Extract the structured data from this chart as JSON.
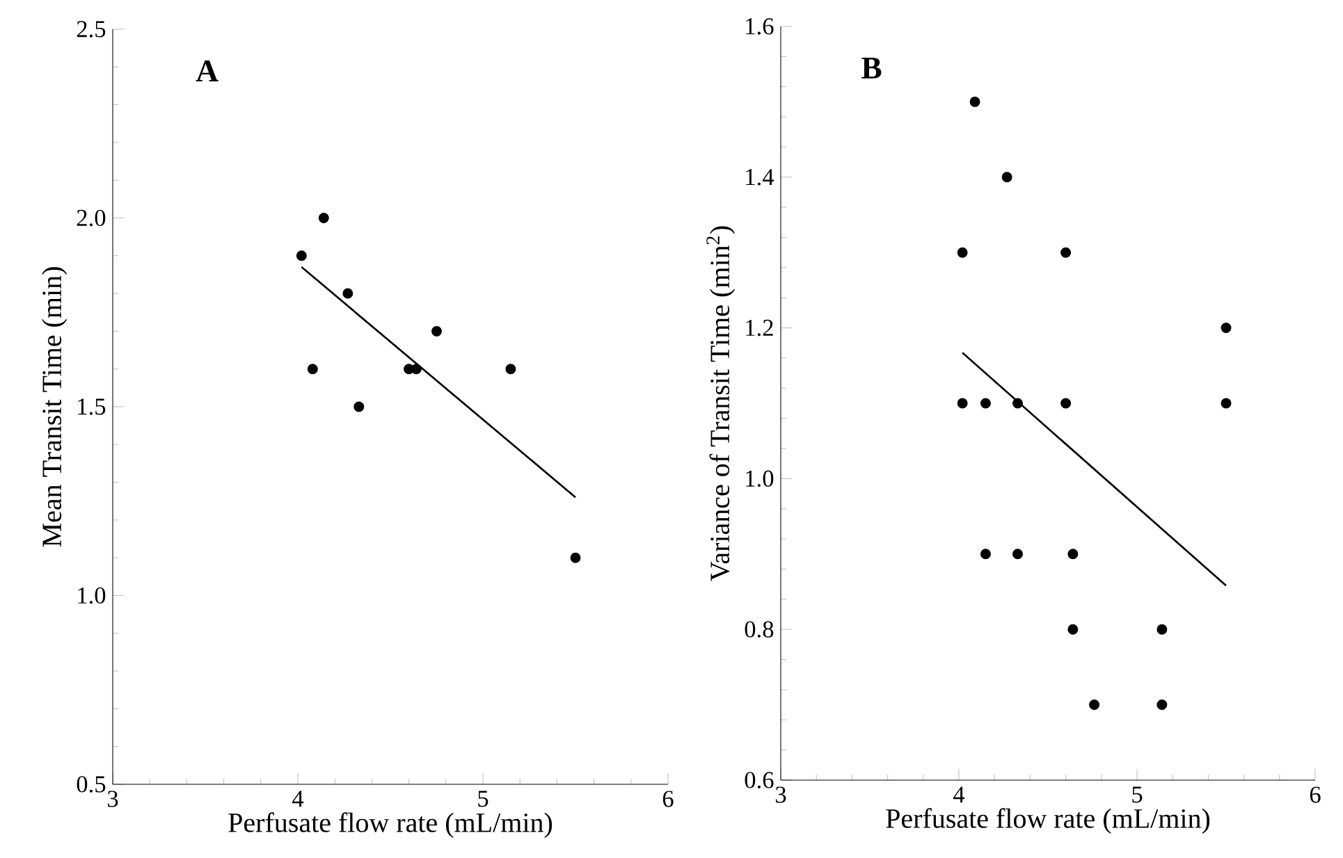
{
  "chart_data": [
    {
      "type": "scatter",
      "title": "A",
      "xlabel": "Perfusate flow rate (mL/min)",
      "ylabel": "Mean Transit Time (min)",
      "xlim": [
        3,
        6
      ],
      "ylim": [
        0.5,
        2.5
      ],
      "xticks": [
        3,
        4,
        5,
        6
      ],
      "yticks": [
        {
          "value": 0.5,
          "label": "0.5"
        },
        {
          "value": 1,
          "label": "1.0"
        },
        {
          "value": 1.5,
          "label": "1.5"
        },
        {
          "value": 2,
          "label": "2.0"
        },
        {
          "value": 2.5,
          "label": "2.5"
        }
      ],
      "series": [
        {
          "marker": "circle",
          "color": "#000000",
          "x": [
            4.02,
            4.14,
            4.27,
            4.08,
            4.33,
            4.6,
            4.64,
            4.75,
            5.15,
            5.5
          ],
          "values": [
            1.9,
            2.0,
            1.8,
            1.6,
            1.5,
            1.6,
            1.6,
            1.7,
            1.6,
            1.1
          ]
        },
        {
          "type": "line",
          "marker": "none",
          "color": "#000000",
          "x": [
            4.02,
            5.5
          ],
          "values": [
            1.87,
            1.26
          ]
        }
      ]
    },
    {
      "type": "scatter",
      "title": "B",
      "xlabel": "Perfusate flow rate (mL/min)",
      "ylabel": "Variance of Transit Time (min$^{2}$)",
      "xlim": [
        3,
        6
      ],
      "ylim": [
        0.6,
        1.6
      ],
      "xticks": [
        3,
        4,
        5,
        6
      ],
      "yticks": [
        {
          "value": 0.6,
          "label": "0.6"
        },
        {
          "value": 0.8,
          "label": "0.8"
        },
        {
          "value": 1,
          "label": "1.0"
        },
        {
          "value": 1.2,
          "label": "1.2"
        },
        {
          "value": 1.4,
          "label": "1.4"
        },
        {
          "value": 1.6,
          "label": "1.6"
        }
      ],
      "series": [
        {
          "marker": "circle",
          "color": "#000000",
          "x": [
            4.09,
            4.27,
            4.02,
            4.6,
            5.5,
            4.02,
            4.15,
            4.33,
            4.6,
            5.5,
            4.15,
            4.33,
            4.64,
            4.64,
            5.14,
            4.76,
            5.14
          ],
          "values": [
            1.5,
            1.4,
            1.3,
            1.3,
            1.2,
            1.1,
            1.1,
            1.1,
            1.1,
            1.1,
            0.9,
            0.9,
            0.9,
            0.8,
            0.8,
            0.7,
            0.7
          ]
        },
        {
          "type": "line",
          "marker": "none",
          "color": "#000000",
          "x": [
            4.02,
            5.5
          ],
          "values": [
            1.167,
            0.858
          ]
        }
      ]
    }
  ]
}
